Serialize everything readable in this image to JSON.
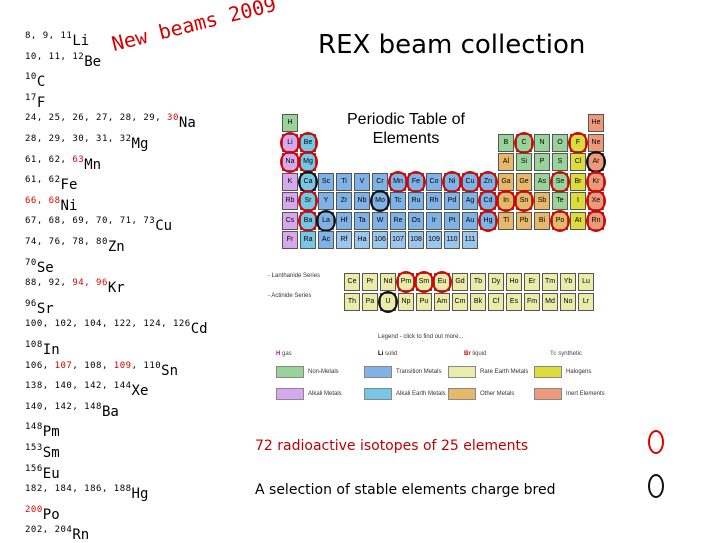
{
  "title": "REX beam collection",
  "annotation": "New beams 2009",
  "isotopes": [
    {
      "parts": [
        {
          "t": "8, 9, 11",
          "r": false
        }
      ],
      "element": "Li"
    },
    {
      "parts": [
        {
          "t": "10, 11, 12",
          "r": false
        }
      ],
      "element": "Be"
    },
    {
      "parts": [
        {
          "t": "10",
          "r": false
        }
      ],
      "element": "C"
    },
    {
      "parts": [
        {
          "t": "17",
          "r": false
        }
      ],
      "element": "F"
    },
    {
      "parts": [
        {
          "t": "24, 25, 26, 27, 28, 29, ",
          "r": false
        },
        {
          "t": "30",
          "r": true
        }
      ],
      "element": "Na"
    },
    {
      "parts": [
        {
          "t": "28, 29, 30, 31, 32",
          "r": false
        }
      ],
      "element": "Mg"
    },
    {
      "parts": [
        {
          "t": "61, 62, ",
          "r": false
        },
        {
          "t": "63",
          "r": true
        }
      ],
      "element": "Mn"
    },
    {
      "parts": [
        {
          "t": "61, 62",
          "r": false
        }
      ],
      "element": "Fe"
    },
    {
      "parts": [
        {
          "t": "66, 68",
          "r": true
        }
      ],
      "element": "Ni"
    },
    {
      "parts": [
        {
          "t": "67, 68, 69, 70, 71, 73",
          "r": false
        }
      ],
      "element": "Cu"
    },
    {
      "parts": [
        {
          "t": "74, 76, 78, 80",
          "r": false
        }
      ],
      "element": "Zn"
    },
    {
      "parts": [
        {
          "t": "70",
          "r": false
        }
      ],
      "element": "Se"
    },
    {
      "parts": [
        {
          "t": "88, 92, ",
          "r": false
        },
        {
          "t": "94, 96",
          "r": true
        }
      ],
      "element": "Kr"
    },
    {
      "parts": [
        {
          "t": "96",
          "r": false
        }
      ],
      "element": "Sr"
    },
    {
      "parts": [
        {
          "t": "100, 102, 104, 122, 124, 126",
          "r": false
        }
      ],
      "element": "Cd"
    },
    {
      "parts": [
        {
          "t": "108",
          "r": false
        }
      ],
      "element": "In"
    },
    {
      "parts": [
        {
          "t": "106, ",
          "r": false
        },
        {
          "t": "107",
          "r": true
        },
        {
          "t": ", 108, ",
          "r": false
        },
        {
          "t": "109",
          "r": true
        },
        {
          "t": ", 110",
          "r": false
        }
      ],
      "element": "Sn"
    },
    {
      "parts": [
        {
          "t": "138, 140, 142, 144",
          "r": false
        }
      ],
      "element": "Xe"
    },
    {
      "parts": [
        {
          "t": "140, 142, 148",
          "r": false
        }
      ],
      "element": "Ba"
    },
    {
      "parts": [
        {
          "t": "148",
          "r": false
        }
      ],
      "element": "Pm"
    },
    {
      "parts": [
        {
          "t": "153",
          "r": false
        }
      ],
      "element": "Sm"
    },
    {
      "parts": [
        {
          "t": "156",
          "r": false
        }
      ],
      "element": "Eu"
    },
    {
      "parts": [
        {
          "t": "182, 184, 186, 188",
          "r": false
        }
      ],
      "element": "Hg"
    },
    {
      "parts": [
        {
          "t": "200",
          "r": true
        }
      ],
      "element": "Po"
    },
    {
      "parts": [
        {
          "t": "202, 204",
          "r": false
        }
      ],
      "element": "Rn"
    }
  ],
  "periodic_table": {
    "heading": "Periodic Table of Elements",
    "legend_title": "Legend - click to find out more...",
    "states": [
      {
        "sym": "H",
        "label": "gas",
        "color": "#d000d0"
      },
      {
        "sym": "Li",
        "label": "solid",
        "color": "#000000"
      },
      {
        "sym": "Br",
        "label": "liquid",
        "color": "#cc0000"
      },
      {
        "sym": "Tc",
        "label": "synthetic",
        "color": "#888888"
      }
    ],
    "categories": [
      {
        "label": "Non-Metals",
        "color": "#9ad39a"
      },
      {
        "label": "Transition Metals",
        "color": "#7fb2e6"
      },
      {
        "label": "Rare Earth Metals",
        "color": "#ececaa"
      },
      {
        "label": "Halogens",
        "color": "#dcdc3c"
      },
      {
        "label": "Alkali Metals",
        "color": "#d7a8ee"
      },
      {
        "label": "Alkali Earth Metals",
        "color": "#76c7e6"
      },
      {
        "label": "Other Metals",
        "color": "#e8b86a"
      },
      {
        "label": "Inert Elements",
        "color": "#ee9a7a"
      }
    ],
    "lanthanide_label": "- Lanthanide Series",
    "actinide_label": "- Actinide Series",
    "main_rows": [
      [
        "H",
        "",
        "",
        "",
        "",
        "",
        "",
        "",
        "",
        "",
        "",
        "",
        "",
        "",
        "",
        "",
        "",
        "He"
      ],
      [
        "Li",
        "Be",
        "",
        "",
        "",
        "",
        "",
        "",
        "",
        "",
        "",
        "",
        "B",
        "C",
        "N",
        "O",
        "F",
        "Ne"
      ],
      [
        "Na",
        "Mg",
        "",
        "",
        "",
        "",
        "",
        "",
        "",
        "",
        "",
        "",
        "Al",
        "Si",
        "P",
        "S",
        "Cl",
        "Ar"
      ],
      [
        "K",
        "Ca",
        "Sc",
        "Ti",
        "V",
        "Cr",
        "Mn",
        "Fe",
        "Co",
        "Ni",
        "Cu",
        "Zn",
        "Ga",
        "Ge",
        "As",
        "Se",
        "Br",
        "Kr"
      ],
      [
        "Rb",
        "Sr",
        "Y",
        "Zr",
        "Nb",
        "Mo",
        "Tc",
        "Ru",
        "Rh",
        "Pd",
        "Ag",
        "Cd",
        "In",
        "Sn",
        "Sb",
        "Te",
        "I",
        "Xe"
      ],
      [
        "Cs",
        "Ba",
        "La",
        "Hf",
        "Ta",
        "W",
        "Re",
        "Os",
        "Ir",
        "Pt",
        "Au",
        "Hg",
        "Tl",
        "Pb",
        "Bi",
        "Po",
        "At",
        "Rn"
      ],
      [
        "Fr",
        "Ra",
        "Ac",
        "Rf",
        "Ha",
        "106",
        "107",
        "108",
        "109",
        "110",
        "111",
        "",
        "",
        "",
        "",
        "",
        "",
        ""
      ]
    ],
    "lanthanides": [
      "Ce",
      "Pr",
      "Nd",
      "Pm",
      "Sm",
      "Eu",
      "Gd",
      "Tb",
      "Dy",
      "Ho",
      "Er",
      "Tm",
      "Yb",
      "Lu"
    ],
    "actinides": [
      "Th",
      "Pa",
      "U",
      "Np",
      "Pu",
      "Am",
      "Cm",
      "Bk",
      "Cf",
      "Es",
      "Fm",
      "Md",
      "No",
      "Lr"
    ],
    "red_marked": [
      "Li",
      "Be",
      "C",
      "F",
      "Na",
      "Mg",
      "Mn",
      "Fe",
      "Ni",
      "Cu",
      "Zn",
      "Se",
      "Kr",
      "Sr",
      "Cd",
      "In",
      "Sn",
      "Xe",
      "Ba",
      "Hg",
      "Po",
      "Rn",
      "Pm",
      "Sm",
      "Eu"
    ],
    "black_marked": [
      "Ca",
      "Mo",
      "Sn",
      "Hg",
      "La",
      "U",
      "Ar"
    ]
  },
  "caption_radioactive": "72 radioactive isotopes of 25 elements",
  "caption_stable": "A selection of stable elements charge bred"
}
